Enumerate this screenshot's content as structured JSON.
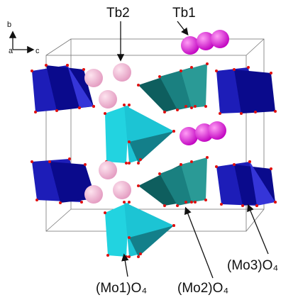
{
  "axes": {
    "b": "b",
    "a": "a",
    "c": "c"
  },
  "labels": {
    "tb2": "Tb2",
    "tb1": "Tb1",
    "mo1": "(Mo1)O₄",
    "mo2": "(Mo2)O₄",
    "mo3": "(Mo3)O₄"
  }
}
